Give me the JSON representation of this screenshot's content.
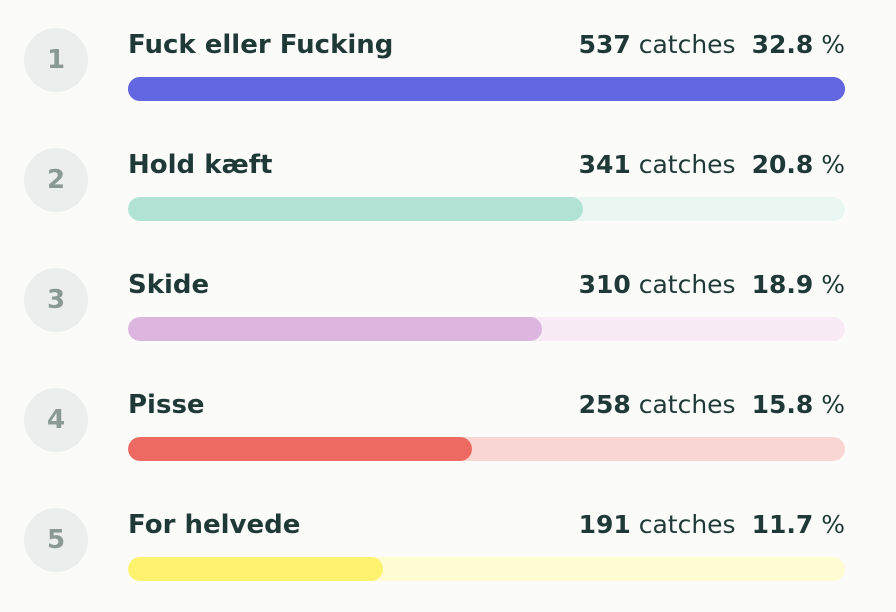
{
  "chart_data": {
    "type": "bar",
    "orientation": "horizontal",
    "unit": "catches",
    "percent_symbol": "%",
    "xlim": [
      0,
      537
    ],
    "items": [
      {
        "rank": "1",
        "name": "Fuck eller Fucking",
        "count": 537,
        "percent": "32.8",
        "color": "#6366e1",
        "track_color": "#6366e1"
      },
      {
        "rank": "2",
        "name": "Hold kæft",
        "count": 341,
        "percent": "20.8",
        "color": "#b0e3d4",
        "track_color": "#eaf6f2"
      },
      {
        "rank": "3",
        "name": "Skide",
        "count": 310,
        "percent": "18.9",
        "color": "#dcb6df",
        "track_color": "#f8ebf6"
      },
      {
        "rank": "4",
        "name": "Pisse",
        "count": 258,
        "percent": "15.8",
        "color": "#ec6a62",
        "track_color": "#f9d6d3"
      },
      {
        "rank": "5",
        "name": "For helvede",
        "count": 191,
        "percent": "11.7",
        "color": "#fdf36e",
        "track_color": "#fffbd3"
      }
    ]
  }
}
